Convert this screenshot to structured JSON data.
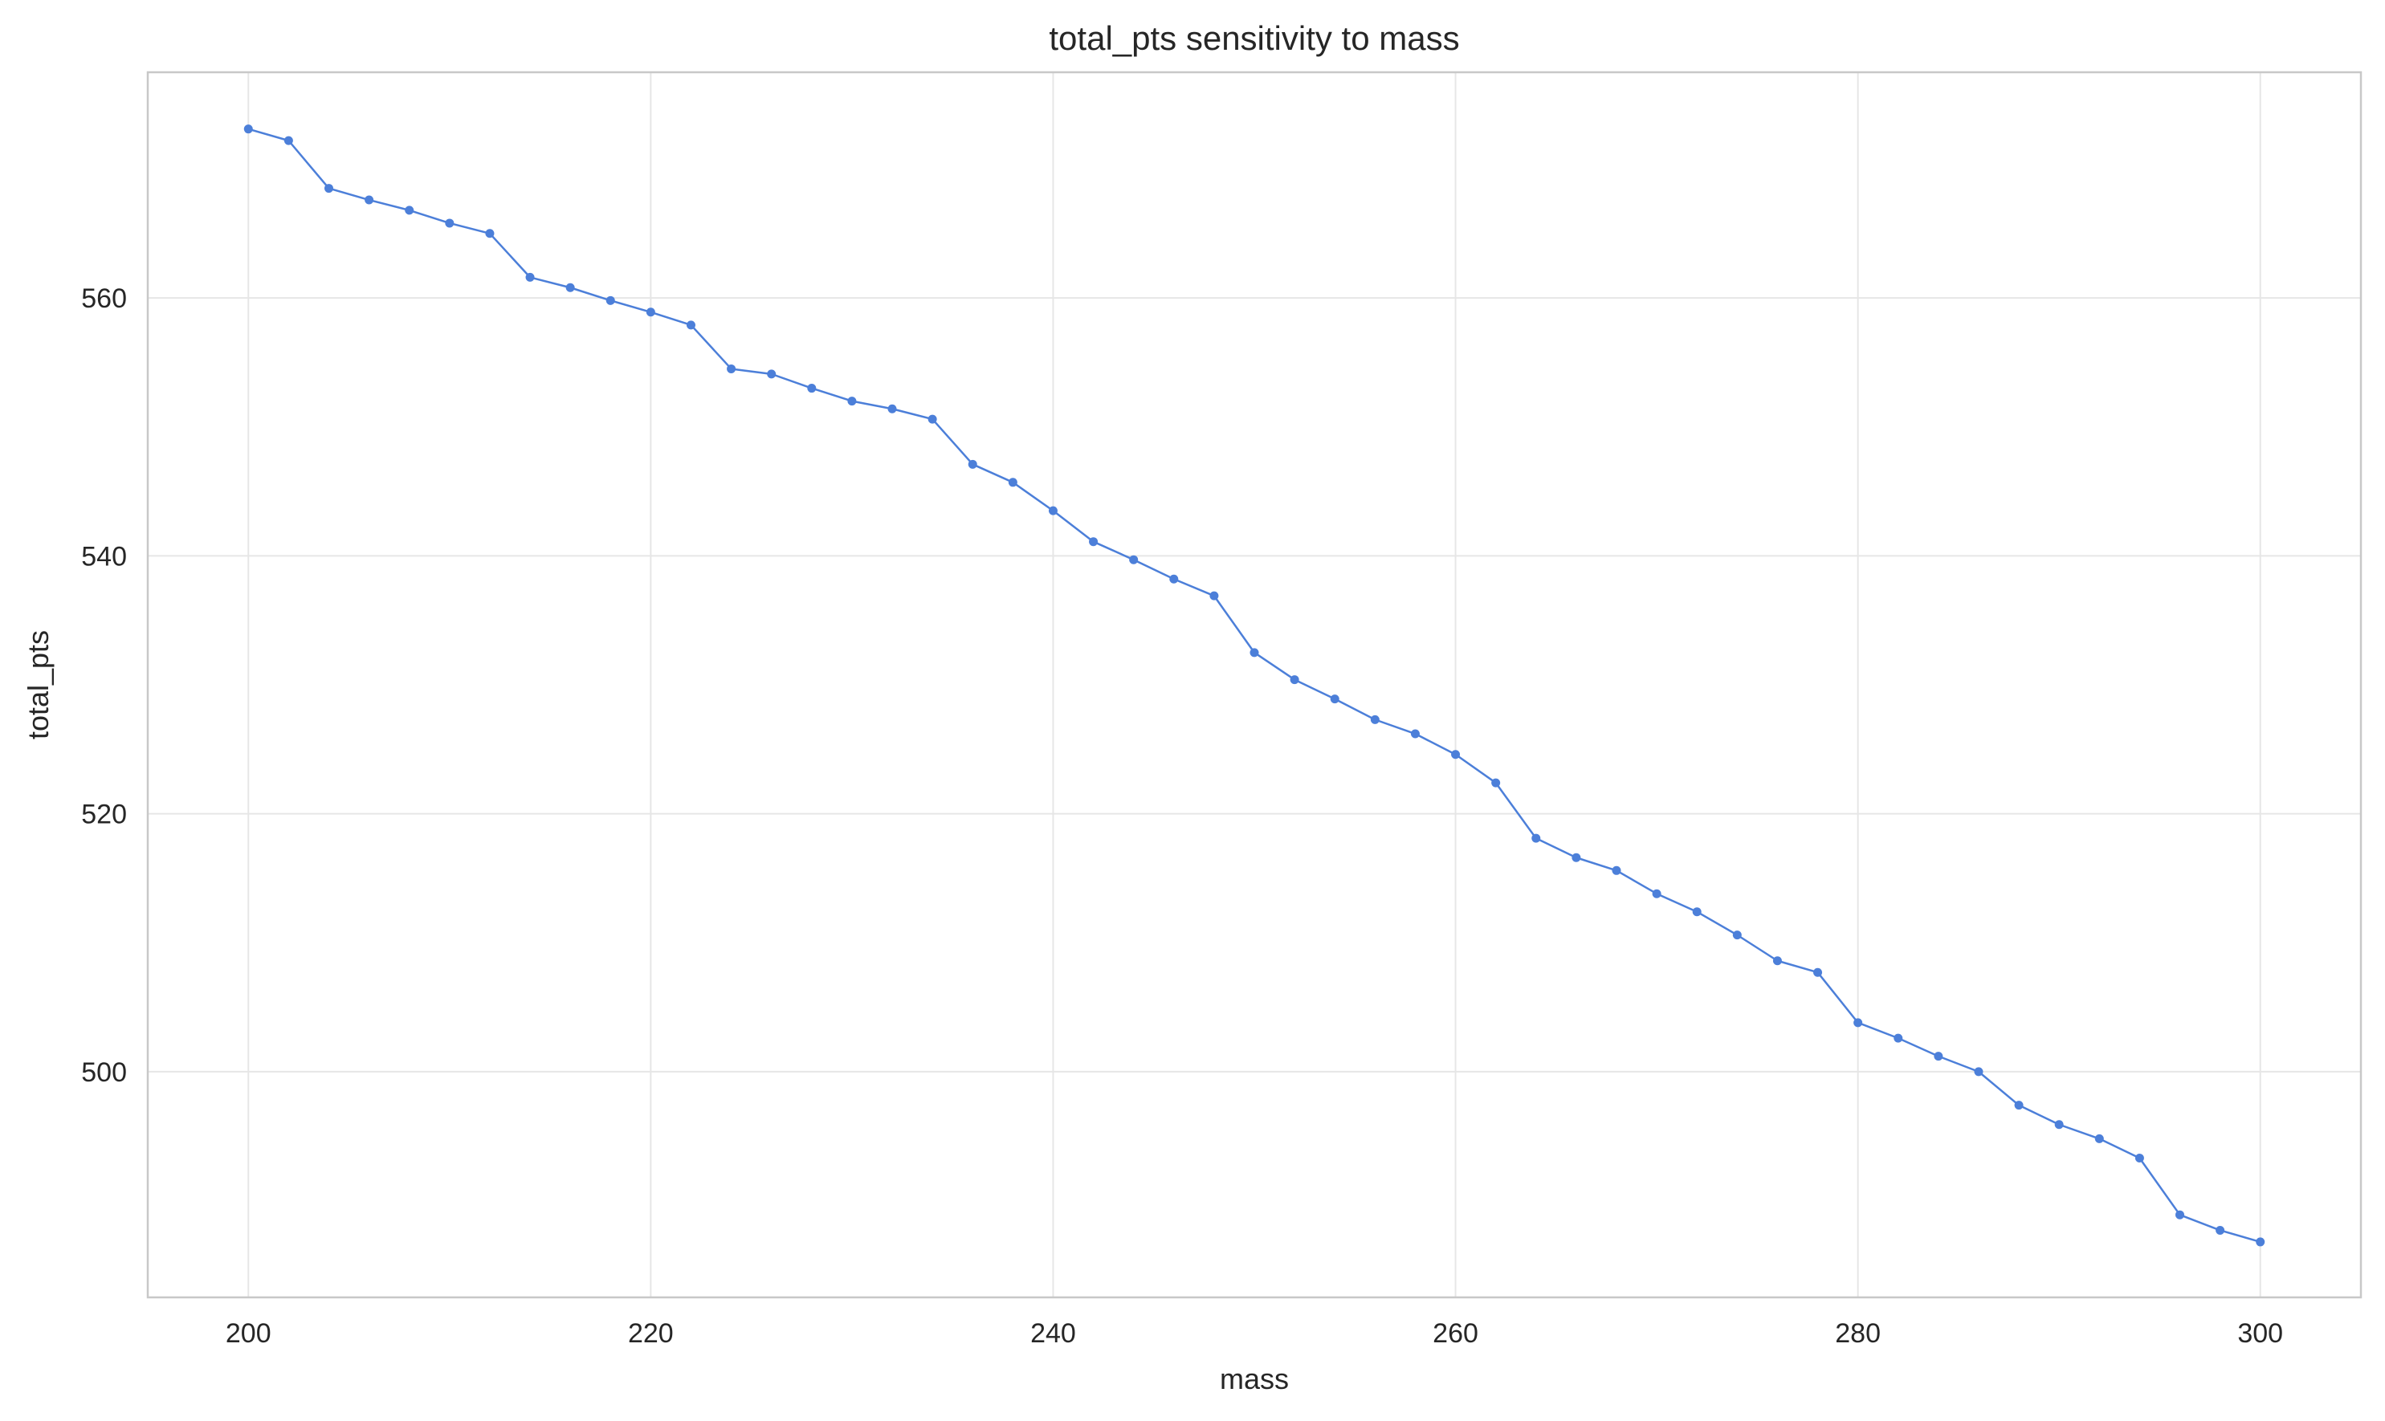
{
  "chart_data": {
    "type": "line",
    "title": "total_pts sensitivity to mass",
    "xlabel": "mass",
    "ylabel": "total_pts",
    "xlim": [
      195,
      305
    ],
    "ylim": [
      482.5,
      577.5
    ],
    "xticks": [
      200,
      220,
      240,
      260,
      280,
      300
    ],
    "yticks": [
      500,
      520,
      540,
      560
    ],
    "grid": true,
    "line_color": "#4c7fd9",
    "series": [
      {
        "x": [
          200,
          202,
          204,
          206,
          208,
          210,
          212,
          214,
          216,
          218,
          220,
          222,
          224,
          226,
          228,
          230,
          232,
          234,
          236,
          238,
          240,
          242,
          244,
          246,
          248,
          250,
          252,
          254,
          256,
          258,
          260,
          262,
          264,
          266,
          268,
          270,
          272,
          274,
          276,
          278,
          280,
          282,
          284,
          286,
          288,
          290,
          292,
          294,
          296,
          298,
          300
        ],
        "y": [
          573.1,
          572.2,
          568.5,
          567.6,
          566.8,
          565.8,
          565.0,
          561.6,
          560.8,
          559.8,
          558.9,
          557.9,
          554.5,
          554.1,
          553.0,
          552.0,
          551.4,
          550.6,
          547.1,
          545.7,
          543.5,
          541.1,
          539.7,
          538.2,
          536.9,
          532.5,
          530.4,
          528.9,
          527.3,
          526.2,
          524.6,
          522.4,
          518.1,
          516.6,
          515.6,
          513.8,
          512.4,
          510.6,
          508.6,
          507.7,
          503.8,
          502.6,
          501.2,
          500.0,
          497.4,
          495.9,
          494.8,
          493.3,
          488.9,
          487.7,
          486.8
        ]
      }
    ]
  }
}
